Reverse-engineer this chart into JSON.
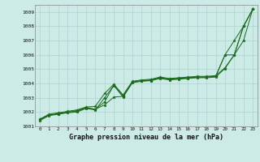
{
  "title": "Graphe pression niveau de la mer (hPa)",
  "bg_color": "#cceae6",
  "grid_color": "#aad4ce",
  "line_color": "#1a6b1a",
  "xlim": [
    -0.5,
    23.5
  ],
  "ylim": [
    1001,
    1009.5
  ],
  "yticks": [
    1001,
    1002,
    1003,
    1004,
    1005,
    1006,
    1007,
    1008,
    1009
  ],
  "xticks": [
    0,
    1,
    2,
    3,
    4,
    5,
    6,
    7,
    8,
    9,
    10,
    11,
    12,
    13,
    14,
    15,
    16,
    17,
    18,
    19,
    20,
    21,
    22,
    23
  ],
  "series": [
    [
      1001.5,
      1001.8,
      1001.9,
      1002.0,
      1002.1,
      1002.3,
      1002.2,
      1002.7,
      1003.9,
      1003.1,
      1004.1,
      1004.2,
      1004.2,
      1004.4,
      1004.3,
      1004.35,
      1004.4,
      1004.45,
      1004.45,
      1004.5,
      1006.0,
      1007.0,
      1008.0,
      1009.2
    ],
    [
      1001.5,
      1001.85,
      1001.95,
      1002.05,
      1002.15,
      1002.35,
      1002.4,
      1003.3,
      1003.95,
      1003.2,
      1004.15,
      1004.25,
      1004.3,
      1004.45,
      1004.35,
      1004.4,
      1004.45,
      1004.5,
      1004.5,
      1004.55,
      1005.1,
      1006.0,
      1007.0,
      1009.2
    ],
    [
      1001.4,
      1001.75,
      1001.85,
      1001.95,
      1002.0,
      1002.25,
      1002.15,
      1003.0,
      1003.85,
      1003.05,
      1004.05,
      1004.15,
      1004.2,
      1004.35,
      1004.25,
      1004.3,
      1004.35,
      1004.4,
      1004.4,
      1004.45,
      1005.05,
      1006.0,
      1008.0,
      1009.2
    ],
    [
      1001.45,
      1001.8,
      1001.85,
      1002.0,
      1002.05,
      1002.3,
      1002.2,
      1002.5,
      1003.05,
      1003.1,
      1004.1,
      1004.2,
      1004.25,
      1004.4,
      1004.3,
      1004.35,
      1004.4,
      1004.45,
      1004.45,
      1004.5,
      1006.0,
      1006.0,
      1008.0,
      1009.2
    ]
  ]
}
